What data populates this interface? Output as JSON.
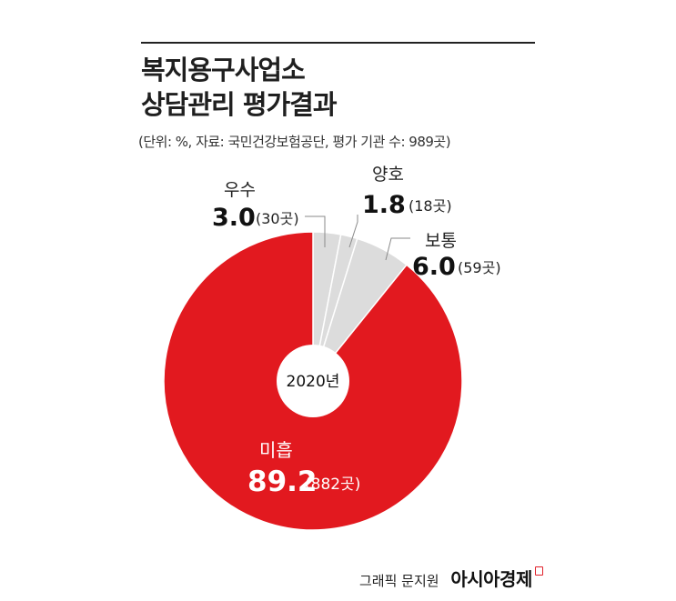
{
  "title_lines": [
    "복지용구사업소",
    "상담관리 평가결과"
  ],
  "note": "(단위: %, 자료: 국민건강보험공단, 평가 기관 수: 989곳)",
  "center_label": "2020년",
  "colors": {
    "main": "#e2191f",
    "other": "#dcdcdc",
    "separator": "#ffffff",
    "leader": "#8a8a8a"
  },
  "chart_data": {
    "type": "pie",
    "unit": "%",
    "center_label": "2020년",
    "slices": [
      {
        "name": "우수",
        "value": 3.0,
        "value_text": "3.0",
        "count": "(30곳)",
        "color": "#dcdcdc"
      },
      {
        "name": "양호",
        "value": 1.8,
        "value_text": "1.8",
        "count": "(18곳)",
        "color": "#dcdcdc"
      },
      {
        "name": "보통",
        "value": 6.0,
        "value_text": "6.0",
        "count": "(59곳)",
        "color": "#dcdcdc"
      },
      {
        "name": "미흡",
        "value": 89.2,
        "value_text": "89.2",
        "count": "(882곳)",
        "color": "#e2191f"
      }
    ]
  },
  "footer": {
    "credit": "그래픽 문지원",
    "brand": "아시아경제"
  }
}
